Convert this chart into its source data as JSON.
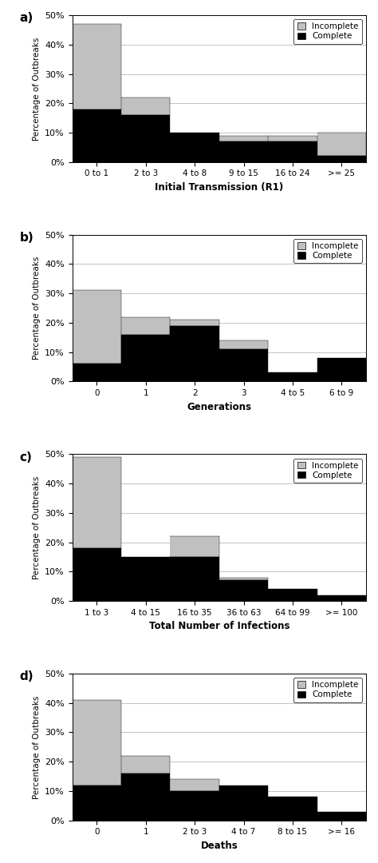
{
  "charts": [
    {
      "label": "a)",
      "xlabel": "Initial Transmission (R1)",
      "categories": [
        "0 to 1",
        "2 to 3",
        "4 to 8",
        "9 to 15",
        "16 to 24",
        ">= 25"
      ],
      "complete": [
        18,
        16,
        10,
        7,
        7,
        2
      ],
      "incomplete": [
        29,
        6,
        0,
        2,
        2,
        8
      ]
    },
    {
      "label": "b)",
      "xlabel": "Generations",
      "categories": [
        "0",
        "1",
        "2",
        "3",
        "4 to 5",
        "6 to 9"
      ],
      "complete": [
        6,
        16,
        19,
        11,
        3,
        8
      ],
      "incomplete": [
        25,
        6,
        2,
        3,
        0,
        0
      ]
    },
    {
      "label": "c)",
      "xlabel": "Total Number of Infections",
      "categories": [
        "1 to 3",
        "4 to 15",
        "16 to 35",
        "36 to 63",
        "64 to 99",
        ">= 100"
      ],
      "complete": [
        18,
        15,
        15,
        7,
        4,
        2
      ],
      "incomplete": [
        31,
        0,
        7,
        1,
        0,
        0
      ]
    },
    {
      "label": "d)",
      "xlabel": "Deaths",
      "categories": [
        "0",
        "1",
        "2 to 3",
        "4 to 7",
        "8 to 15",
        ">= 16"
      ],
      "complete": [
        12,
        16,
        10,
        12,
        8,
        3
      ],
      "incomplete": [
        29,
        6,
        4,
        0,
        0,
        0
      ]
    }
  ],
  "ylabel": "Percentage of Outbreaks",
  "ylim": [
    0,
    50
  ],
  "yticks": [
    0,
    10,
    20,
    30,
    40,
    50
  ],
  "ytick_labels": [
    "0%",
    "10%",
    "20%",
    "30%",
    "40%",
    "50%"
  ],
  "color_complete": "#000000",
  "color_incomplete": "#c0c0c0",
  "background_color": "#ffffff",
  "bar_width": 1.0
}
